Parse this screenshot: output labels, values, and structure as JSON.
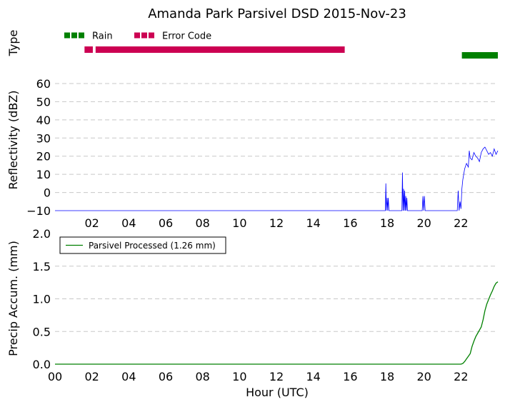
{
  "chart_data": [
    {
      "type": "bar",
      "title": "Amanda Park Parsivel DSD 2015-Nov-23",
      "ylabel": "Type",
      "xlim": [
        0,
        24
      ],
      "legend_position": "top-left",
      "series": [
        {
          "name": "Rain",
          "color": "#008000",
          "intervals": [
            [
              22.05,
              24.0
            ]
          ]
        },
        {
          "name": "Error Code",
          "color": "#cc0052",
          "intervals": [
            [
              1.6,
              2.05
            ],
            [
              2.2,
              15.7
            ]
          ]
        }
      ]
    },
    {
      "type": "line",
      "ylabel": "Reflectivity (dBZ)",
      "ylim": [
        -10,
        60
      ],
      "yticks": [
        -10,
        0,
        10,
        20,
        30,
        40,
        50,
        60
      ],
      "xlim": [
        0,
        24
      ],
      "grid": true,
      "series": [
        {
          "color": "#0000ff",
          "x": [
            0,
            17.9,
            17.93,
            17.96,
            18.0,
            18.03,
            18.06,
            18.1,
            18.13,
            18.8,
            18.83,
            18.86,
            18.89,
            18.92,
            18.95,
            18.98,
            19.01,
            19.04,
            19.07,
            19.1,
            19.13,
            19.16,
            19.2,
            19.9,
            19.94,
            19.98,
            20.02,
            20.06,
            20.1,
            21.8,
            21.85,
            21.9,
            21.95,
            22.0,
            22.05,
            22.1,
            22.2,
            22.3,
            22.4,
            22.45,
            22.5,
            22.6,
            22.7,
            22.8,
            22.9,
            23.0,
            23.1,
            23.2,
            23.3,
            23.4,
            23.5,
            23.6,
            23.7,
            23.8,
            23.9,
            24.0
          ],
          "y": [
            -10,
            -10,
            5,
            -10,
            -3,
            -10,
            -3,
            -10,
            -10,
            -10,
            11,
            -10,
            2,
            -10,
            1,
            -10,
            -2,
            -10,
            -3,
            -10,
            -10,
            -10,
            -10,
            -10,
            -2,
            -10,
            -2,
            -10,
            -10,
            -10,
            1,
            -10,
            -5,
            -9,
            2,
            7,
            13,
            16,
            14,
            23,
            19,
            18,
            22,
            20,
            19,
            17,
            22,
            24,
            25,
            23,
            21,
            22,
            20,
            24,
            21,
            23
          ]
        }
      ]
    },
    {
      "type": "line",
      "ylabel": "Precip Accum. (mm)",
      "xlabel": "Hour (UTC)",
      "ylim": [
        0,
        2
      ],
      "yticks": [
        "0.0",
        "0.5",
        "1.0",
        "1.5",
        "2.0"
      ],
      "xlim": [
        0,
        24
      ],
      "xticks": [
        "00",
        "02",
        "04",
        "06",
        "08",
        "10",
        "12",
        "14",
        "16",
        "18",
        "20",
        "22"
      ],
      "grid": true,
      "legend_position": "top-left",
      "series": [
        {
          "name": "Parsivel Processed (1.26 mm)",
          "color": "#008000",
          "x": [
            0,
            22.0,
            22.1,
            22.2,
            22.3,
            22.4,
            22.5,
            22.6,
            22.7,
            22.8,
            22.9,
            23.0,
            23.1,
            23.2,
            23.3,
            23.4,
            23.5,
            23.6,
            23.7,
            23.8,
            23.9,
            24.0
          ],
          "y": [
            0,
            0.0,
            0.01,
            0.04,
            0.08,
            0.12,
            0.16,
            0.27,
            0.35,
            0.42,
            0.47,
            0.52,
            0.57,
            0.68,
            0.82,
            0.92,
            0.99,
            1.06,
            1.12,
            1.19,
            1.24,
            1.26
          ]
        }
      ]
    }
  ]
}
